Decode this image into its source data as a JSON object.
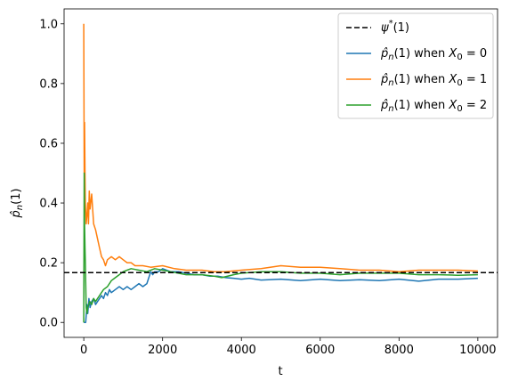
{
  "chart_data": {
    "type": "line",
    "xlabel": "t",
    "ylabel": "p̂n(1)",
    "xlim": [
      -500,
      10500
    ],
    "ylim": [
      -0.05,
      1.05
    ],
    "xticks": [
      0,
      2000,
      4000,
      6000,
      8000,
      10000
    ],
    "xtick_labels": [
      "0",
      "2000",
      "4000",
      "6000",
      "8000",
      "10000"
    ],
    "yticks": [
      0.0,
      0.2,
      0.4,
      0.6,
      0.8,
      1.0
    ],
    "ytick_labels": [
      "0.0",
      "0.2",
      "0.4",
      "0.6",
      "0.8",
      "1.0"
    ],
    "grid": false,
    "legend_position": "top-right",
    "reference_line": {
      "name": "ψ*(1)",
      "y": 0.1667,
      "style": "dashed",
      "color": "#000000"
    },
    "series": [
      {
        "name": "p̂n(1) when X0 = 0",
        "color": "#1f77b4",
        "x": [
          0,
          20,
          50,
          80,
          100,
          130,
          160,
          200,
          250,
          300,
          350,
          400,
          450,
          500,
          550,
          600,
          650,
          700,
          800,
          900,
          1000,
          1100,
          1200,
          1300,
          1400,
          1500,
          1600,
          1650,
          1700,
          1750,
          1800,
          1900,
          2000,
          2200,
          2400,
          2600,
          2800,
          3000,
          3200,
          3400,
          3600,
          3800,
          4000,
          4200,
          4500,
          5000,
          5500,
          6000,
          6500,
          7000,
          7500,
          8000,
          8500,
          9000,
          9500,
          10000
        ],
        "y": [
          0.0,
          0.0,
          0.0,
          0.06,
          0.03,
          0.08,
          0.05,
          0.07,
          0.08,
          0.06,
          0.07,
          0.08,
          0.09,
          0.08,
          0.1,
          0.09,
          0.11,
          0.1,
          0.11,
          0.12,
          0.11,
          0.12,
          0.11,
          0.12,
          0.13,
          0.12,
          0.13,
          0.15,
          0.17,
          0.16,
          0.17,
          0.17,
          0.18,
          0.17,
          0.17,
          0.165,
          0.16,
          0.16,
          0.155,
          0.155,
          0.15,
          0.148,
          0.145,
          0.148,
          0.142,
          0.145,
          0.14,
          0.145,
          0.14,
          0.143,
          0.14,
          0.145,
          0.138,
          0.145,
          0.145,
          0.148
        ]
      },
      {
        "name": "p̂n(1) when X0 = 1",
        "color": "#ff7f0e",
        "x": [
          0,
          10,
          20,
          30,
          40,
          60,
          80,
          100,
          120,
          140,
          160,
          200,
          250,
          300,
          350,
          400,
          450,
          500,
          550,
          600,
          700,
          800,
          900,
          1000,
          1100,
          1200,
          1300,
          1400,
          1500,
          1700,
          2000,
          2300,
          2600,
          3000,
          3300,
          3600,
          4000,
          4500,
          5000,
          5500,
          6000,
          6500,
          7000,
          7500,
          8000,
          8500,
          9000,
          9500,
          10000
        ],
        "y": [
          1.0,
          0.5,
          0.67,
          0.5,
          0.4,
          0.33,
          0.36,
          0.4,
          0.33,
          0.44,
          0.38,
          0.43,
          0.33,
          0.31,
          0.28,
          0.25,
          0.22,
          0.21,
          0.19,
          0.21,
          0.22,
          0.21,
          0.22,
          0.21,
          0.2,
          0.2,
          0.19,
          0.19,
          0.19,
          0.185,
          0.19,
          0.18,
          0.175,
          0.175,
          0.17,
          0.17,
          0.175,
          0.18,
          0.19,
          0.185,
          0.185,
          0.18,
          0.175,
          0.175,
          0.17,
          0.175,
          0.175,
          0.175,
          0.172
        ]
      },
      {
        "name": "p̂n(1) when X0 = 2",
        "color": "#2ca02c",
        "x": [
          0,
          10,
          20,
          30,
          40,
          60,
          80,
          100,
          150,
          200,
          250,
          300,
          400,
          500,
          600,
          700,
          800,
          900,
          1000,
          1100,
          1200,
          1400,
          1600,
          1800,
          2000,
          2200,
          2400,
          2600,
          2800,
          3000,
          3300,
          3500,
          3800,
          4000,
          4500,
          5000,
          5500,
          6000,
          6500,
          7000,
          7500,
          8000,
          8500,
          9000,
          9500,
          10000
        ],
        "y": [
          0.0,
          0.5,
          0.33,
          0.25,
          0.2,
          0.05,
          0.03,
          0.05,
          0.07,
          0.06,
          0.08,
          0.07,
          0.09,
          0.11,
          0.12,
          0.14,
          0.15,
          0.16,
          0.17,
          0.175,
          0.18,
          0.175,
          0.17,
          0.18,
          0.175,
          0.17,
          0.165,
          0.16,
          0.16,
          0.16,
          0.155,
          0.15,
          0.16,
          0.165,
          0.17,
          0.17,
          0.165,
          0.165,
          0.16,
          0.165,
          0.165,
          0.165,
          0.16,
          0.16,
          0.158,
          0.16
        ]
      }
    ]
  }
}
